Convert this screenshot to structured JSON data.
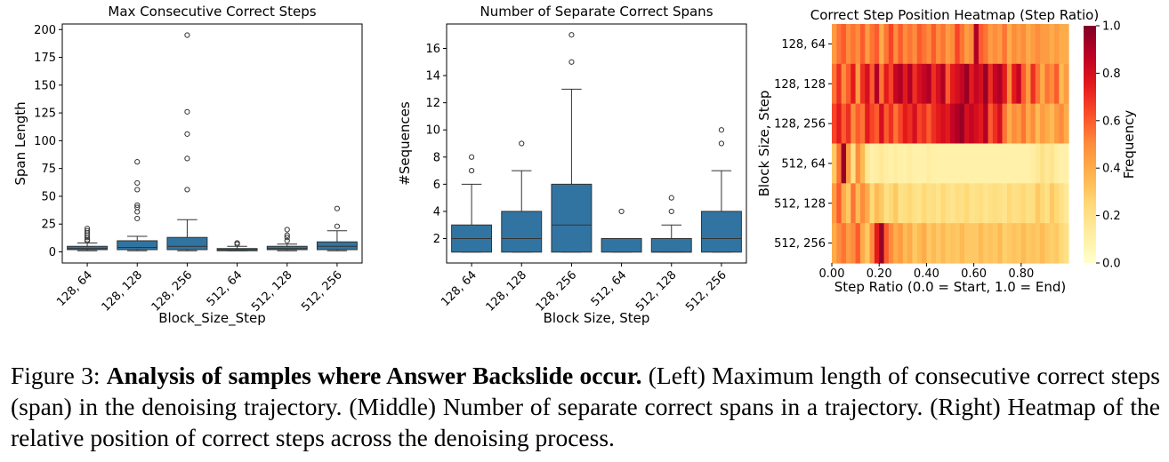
{
  "figure": {
    "caption_label": "Figure 3:",
    "caption_bold": "Analysis of samples where Answer Backslide occur.",
    "caption_text": "(Left) Maximum length of consecutive correct steps (span) in the denoising trajectory. (Middle) Number of separate correct spans in a trajectory. (Right) Heatmap of the relative position of correct steps across the denoising process."
  },
  "colors": {
    "box_fill": "#3274a1",
    "box_edge": "#333333",
    "colormap": "YlOrRd"
  },
  "chart_data": [
    {
      "type": "box",
      "title": "Max Consecutive Correct Steps",
      "xlabel": "Block_Size_Step",
      "ylabel": "Span Length",
      "categories": [
        "128, 64",
        "128, 128",
        "128, 256",
        "512, 64",
        "512, 128",
        "512, 256"
      ],
      "ylim": [
        -10,
        205
      ],
      "yticks": [
        0,
        25,
        50,
        75,
        100,
        125,
        150,
        175,
        200
      ],
      "boxes": [
        {
          "whislo": 1,
          "q1": 2,
          "med": 3,
          "q3": 5,
          "whishi": 8,
          "fliers": [
            10,
            11,
            13,
            15,
            17,
            19,
            21
          ]
        },
        {
          "whislo": 1,
          "q1": 2,
          "med": 4,
          "q3": 10,
          "whishi": 14,
          "fliers": [
            30,
            36,
            40,
            42,
            56,
            62,
            81
          ]
        },
        {
          "whislo": 1,
          "q1": 2,
          "med": 5,
          "q3": 13,
          "whishi": 29,
          "fliers": [
            56,
            84,
            106,
            126,
            195
          ]
        },
        {
          "whislo": 1,
          "q1": 1,
          "med": 2,
          "q3": 3,
          "whishi": 5,
          "fliers": [
            7,
            8
          ]
        },
        {
          "whislo": 1,
          "q1": 2,
          "med": 3,
          "q3": 5,
          "whishi": 7,
          "fliers": [
            10,
            13,
            15,
            20
          ]
        },
        {
          "whislo": 1,
          "q1": 2,
          "med": 5,
          "q3": 9,
          "whishi": 19,
          "fliers": [
            23,
            39
          ]
        }
      ]
    },
    {
      "type": "box",
      "title": "Number of Separate Correct Spans",
      "xlabel": "Block Size, Step",
      "ylabel": "#Sequences",
      "categories": [
        "128, 64",
        "128, 128",
        "128, 256",
        "512, 64",
        "512, 128",
        "512, 256"
      ],
      "ylim": [
        0.2,
        17.8
      ],
      "yticks": [
        2,
        4,
        6,
        8,
        10,
        12,
        14,
        16
      ],
      "boxes": [
        {
          "whislo": 1,
          "q1": 1,
          "med": 2,
          "q3": 3,
          "whishi": 6,
          "fliers": [
            7,
            8
          ]
        },
        {
          "whislo": 1,
          "q1": 1,
          "med": 2,
          "q3": 4,
          "whishi": 7,
          "fliers": [
            9
          ]
        },
        {
          "whislo": 1,
          "q1": 1,
          "med": 3,
          "q3": 6,
          "whishi": 13,
          "fliers": [
            15,
            17
          ]
        },
        {
          "whislo": 1,
          "q1": 1,
          "med": 2,
          "q3": 2,
          "whishi": 2,
          "fliers": [
            4
          ]
        },
        {
          "whislo": 1,
          "q1": 1,
          "med": 1,
          "q3": 2,
          "whishi": 3,
          "fliers": [
            4,
            5
          ]
        },
        {
          "whislo": 1,
          "q1": 1,
          "med": 2,
          "q3": 4,
          "whishi": 7,
          "fliers": [
            9,
            10
          ]
        }
      ]
    },
    {
      "type": "heatmap",
      "title": "Correct Step Position Heatmap (Step Ratio)",
      "xlabel": "Step Ratio (0.0 = Start, 1.0 = End)",
      "ylabel": "Block Size, Step",
      "rows": [
        "128, 64",
        "128, 128",
        "128, 256",
        "512, 64",
        "512, 128",
        "512, 256"
      ],
      "xticks": [
        "0.00",
        "0.20",
        "0.40",
        "0.60",
        "0.80"
      ],
      "xlim": [
        0,
        1
      ],
      "ncols": 50,
      "colorbar": {
        "label": "Frequency",
        "ticks": [
          "0.0",
          "0.2",
          "0.4",
          "0.6",
          "0.8",
          "1.0"
        ],
        "range": [
          0,
          1
        ]
      },
      "values": [
        [
          0.45,
          0.55,
          0.6,
          0.5,
          0.55,
          0.5,
          0.6,
          0.45,
          0.55,
          0.6,
          0.4,
          0.55,
          0.65,
          0.5,
          0.6,
          0.5,
          0.55,
          0.5,
          0.6,
          0.55,
          0.5,
          0.6,
          0.5,
          0.55,
          0.45,
          0.5,
          0.65,
          0.55,
          0.45,
          0.5,
          0.9,
          0.6,
          0.55,
          0.45,
          0.5,
          0.45,
          0.55,
          0.4,
          0.5,
          0.45,
          0.5,
          0.4,
          0.45,
          0.5,
          0.45,
          0.45,
          0.4,
          0.45,
          0.4,
          0.4
        ],
        [
          0.55,
          0.7,
          0.5,
          0.6,
          0.75,
          0.45,
          0.7,
          0.8,
          0.6,
          0.9,
          0.55,
          0.75,
          0.65,
          0.85,
          0.9,
          0.75,
          0.9,
          0.7,
          0.8,
          0.85,
          0.9,
          0.7,
          0.8,
          0.9,
          0.6,
          0.75,
          0.8,
          0.85,
          0.95,
          0.75,
          0.85,
          0.8,
          0.95,
          0.7,
          0.85,
          0.9,
          0.75,
          0.5,
          0.75,
          0.85,
          0.6,
          0.45,
          0.7,
          0.55,
          0.4,
          0.55,
          0.5,
          0.6,
          0.35,
          0.45
        ],
        [
          0.65,
          0.75,
          0.6,
          0.7,
          0.5,
          0.6,
          0.55,
          0.75,
          0.65,
          0.6,
          0.8,
          0.6,
          0.7,
          0.55,
          0.65,
          0.75,
          0.7,
          0.8,
          0.65,
          0.7,
          0.6,
          0.7,
          0.75,
          0.8,
          0.75,
          0.85,
          0.9,
          0.95,
          0.8,
          0.85,
          0.8,
          0.75,
          0.9,
          0.6,
          0.7,
          0.8,
          0.55,
          0.4,
          0.5,
          0.45,
          0.55,
          0.4,
          0.5,
          0.35,
          0.45,
          0.4,
          0.35,
          0.45,
          0.5,
          0.4
        ],
        [
          0.3,
          0.55,
          0.95,
          0.45,
          0.2,
          0.5,
          0.35,
          0.15,
          0.1,
          0.12,
          0.15,
          0.12,
          0.1,
          0.12,
          0.1,
          0.1,
          0.12,
          0.1,
          0.1,
          0.1,
          0.12,
          0.1,
          0.1,
          0.1,
          0.1,
          0.1,
          0.1,
          0.1,
          0.1,
          0.1,
          0.1,
          0.1,
          0.1,
          0.1,
          0.1,
          0.1,
          0.1,
          0.1,
          0.1,
          0.1,
          0.1,
          0.1,
          0.12,
          0.15,
          0.2,
          0.15,
          0.18,
          0.12,
          0.1,
          0.1
        ],
        [
          0.45,
          0.6,
          0.4,
          0.3,
          0.55,
          0.35,
          0.5,
          0.4,
          0.25,
          0.35,
          0.3,
          0.2,
          0.25,
          0.3,
          0.2,
          0.22,
          0.25,
          0.2,
          0.18,
          0.25,
          0.2,
          0.22,
          0.18,
          0.25,
          0.2,
          0.18,
          0.22,
          0.2,
          0.25,
          0.18,
          0.2,
          0.22,
          0.18,
          0.2,
          0.22,
          0.2,
          0.18,
          0.25,
          0.2,
          0.22,
          0.25,
          0.2,
          0.22,
          0.3,
          0.25,
          0.2,
          0.3,
          0.25,
          0.2,
          0.15
        ],
        [
          0.4,
          0.5,
          0.55,
          0.45,
          0.5,
          0.6,
          0.4,
          0.3,
          0.5,
          0.75,
          0.95,
          0.6,
          0.5,
          0.4,
          0.45,
          0.35,
          0.4,
          0.3,
          0.35,
          0.4,
          0.3,
          0.35,
          0.3,
          0.35,
          0.3,
          0.32,
          0.3,
          0.35,
          0.3,
          0.3,
          0.3,
          0.35,
          0.3,
          0.32,
          0.3,
          0.35,
          0.28,
          0.3,
          0.32,
          0.3,
          0.35,
          0.3,
          0.32,
          0.3,
          0.35,
          0.3,
          0.28,
          0.3,
          0.25,
          0.2
        ]
      ]
    }
  ]
}
